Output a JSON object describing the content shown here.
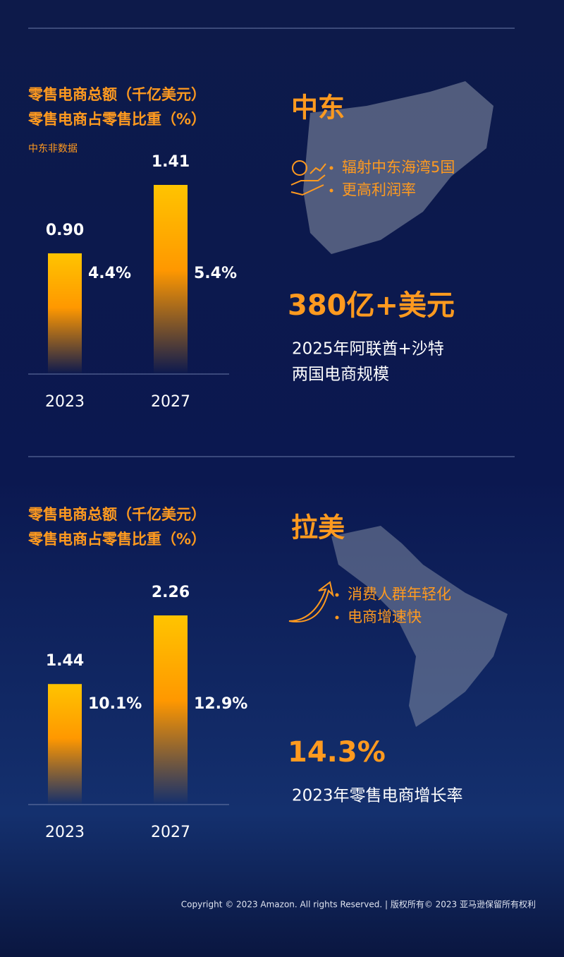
{
  "chart_data": [
    {
      "type": "bar",
      "title": [
        "零售电商总额（千亿美元）",
        "零售电商占零售比重（%）"
      ],
      "subtitle": "中东非数据",
      "categories": [
        "2023",
        "2027"
      ],
      "series": [
        {
          "name": "零售电商总额",
          "color": "#ffa000",
          "values": [
            0.9,
            1.41
          ],
          "value_labels": [
            "0.90",
            "1.41"
          ]
        },
        {
          "name": "零售电商占零售比重",
          "values": [
            4.4,
            5.4
          ],
          "value_labels": [
            "4.4%",
            "5.4%"
          ]
        }
      ]
    },
    {
      "type": "bar",
      "title": [
        "零售电商总额（千亿美元）",
        "零售电商占零售比重（%）"
      ],
      "categories": [
        "2023",
        "2027"
      ],
      "series": [
        {
          "name": "零售电商总额",
          "color": "#ffa000",
          "values": [
            1.44,
            2.26
          ],
          "value_labels": [
            "1.44",
            "2.26"
          ]
        },
        {
          "name": "零售电商占零售比重",
          "values": [
            10.1,
            12.9
          ],
          "value_labels": [
            "10.1%",
            "12.9%"
          ]
        }
      ]
    }
  ],
  "panels": [
    {
      "region": "中东",
      "bullets": [
        "辐射中东海湾5国",
        "更高利润率"
      ],
      "stat": "380亿+美元",
      "stat_note": [
        "2025年阿联酋+沙特",
        "两国电商规模"
      ]
    },
    {
      "region": "拉美",
      "bullets": [
        "消费人群年轻化",
        "电商增速快"
      ],
      "stat": "14.3%",
      "stat_note": [
        "2023年零售电商增长率"
      ]
    }
  ],
  "footer": "Copyright © 2023 Amazon. All rights Reserved.  |  版权所有© 2023 亚马逊保留所有权利"
}
